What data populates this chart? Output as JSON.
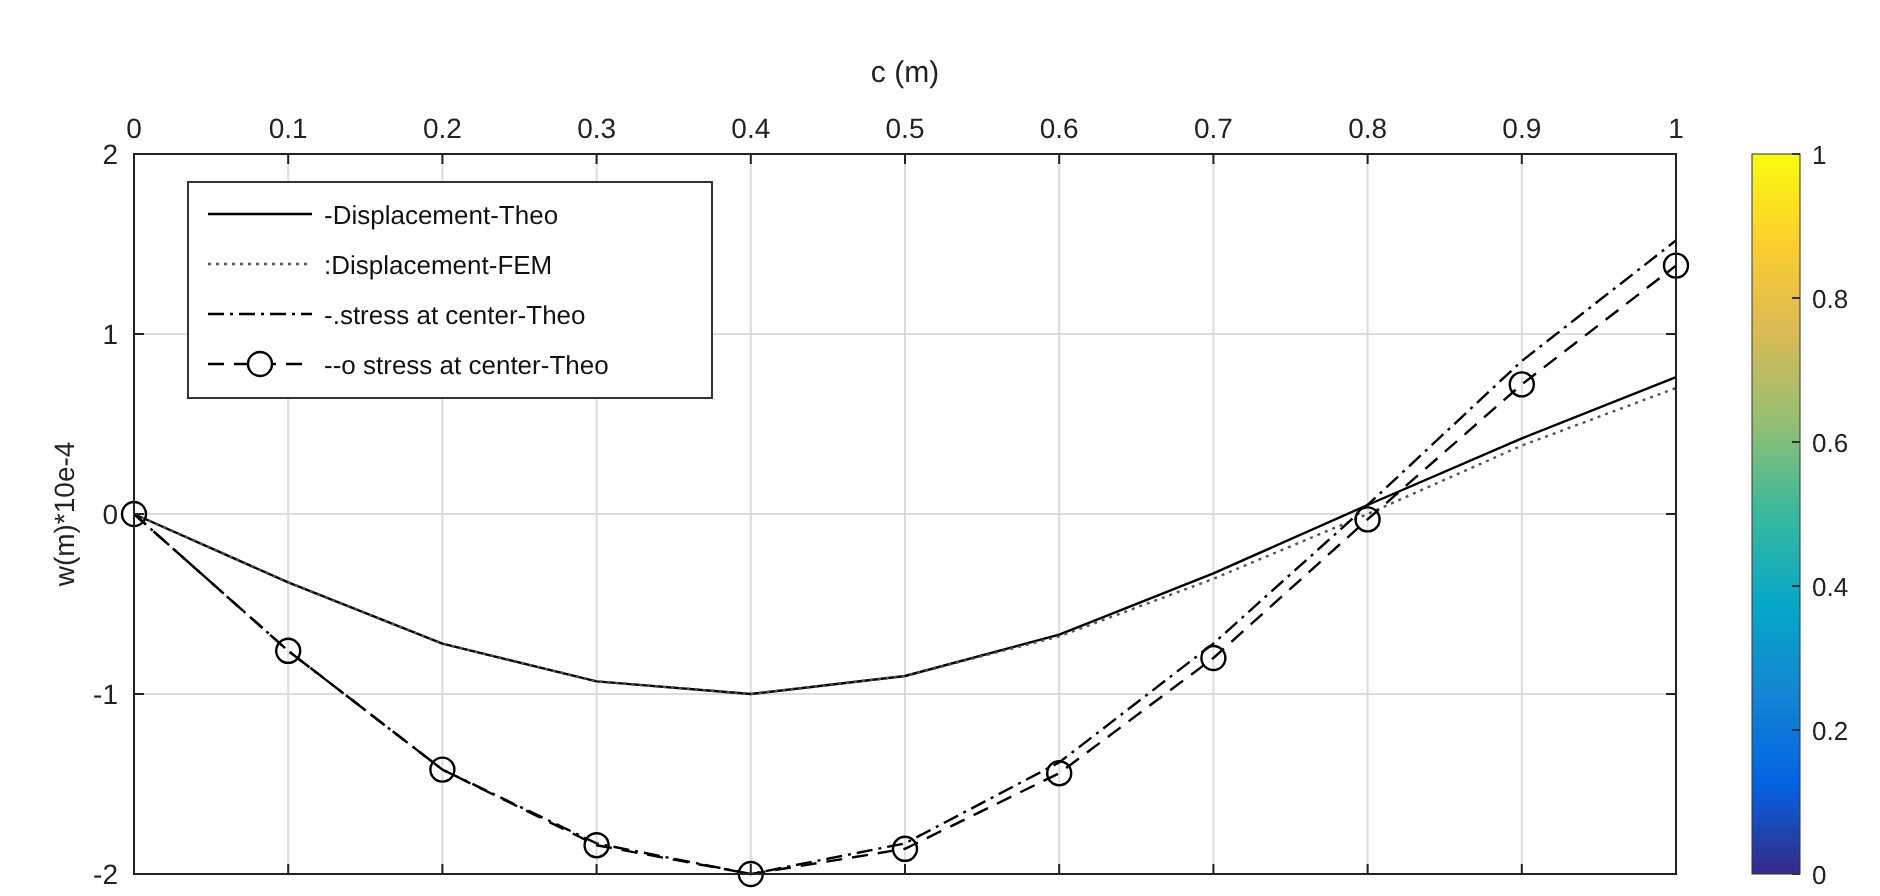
{
  "chart_data": {
    "type": "line",
    "xlabel": "c (m)",
    "ylabel": "w(m)*10e-4",
    "x": [
      0,
      0.1,
      0.2,
      0.3,
      0.4,
      0.5,
      0.6,
      0.7,
      0.8,
      0.9,
      1
    ],
    "xlim": [
      0,
      1
    ],
    "xticks": [
      0,
      0.1,
      0.2,
      0.3,
      0.4,
      0.5,
      0.6,
      0.7,
      0.8,
      0.9,
      1
    ],
    "ylim": [
      -2,
      2
    ],
    "yticks": [
      -2,
      -1,
      0,
      1,
      2
    ],
    "clim": [
      0,
      1
    ],
    "cticks": [
      0,
      0.2,
      0.4,
      0.6,
      0.8,
      1
    ],
    "grid": true,
    "legend": "top left",
    "series": [
      {
        "name": "-Displacement-Theo",
        "color": "#000000",
        "line_style": "solid",
        "marker": "none",
        "values": [
          0,
          -0.38,
          -0.72,
          -0.93,
          -1.0,
          -0.9,
          -0.67,
          -0.33,
          0.05,
          0.42,
          0.76
        ]
      },
      {
        "name": ":Displacement-FEM",
        "color": "#555555",
        "line_style": "dotted",
        "marker": "none",
        "values": [
          0,
          -0.38,
          -0.72,
          -0.93,
          -1.0,
          -0.9,
          -0.68,
          -0.36,
          0.0,
          0.38,
          0.7
        ]
      },
      {
        "name": "-.stress at center-Theo",
        "color": "#000000",
        "line_style": "dashdot",
        "marker": "none",
        "values": [
          0,
          -0.76,
          -1.42,
          -1.83,
          -2.0,
          -1.83,
          -1.38,
          -0.72,
          0.05,
          0.85,
          1.52
        ]
      },
      {
        "name": "--o stress at center-Theo",
        "color": "#000000",
        "line_style": "dashed",
        "marker": "circle",
        "values": [
          0,
          -0.76,
          -1.42,
          -1.84,
          -2.0,
          -1.86,
          -1.44,
          -0.8,
          -0.03,
          0.72,
          1.38
        ]
      }
    ]
  }
}
